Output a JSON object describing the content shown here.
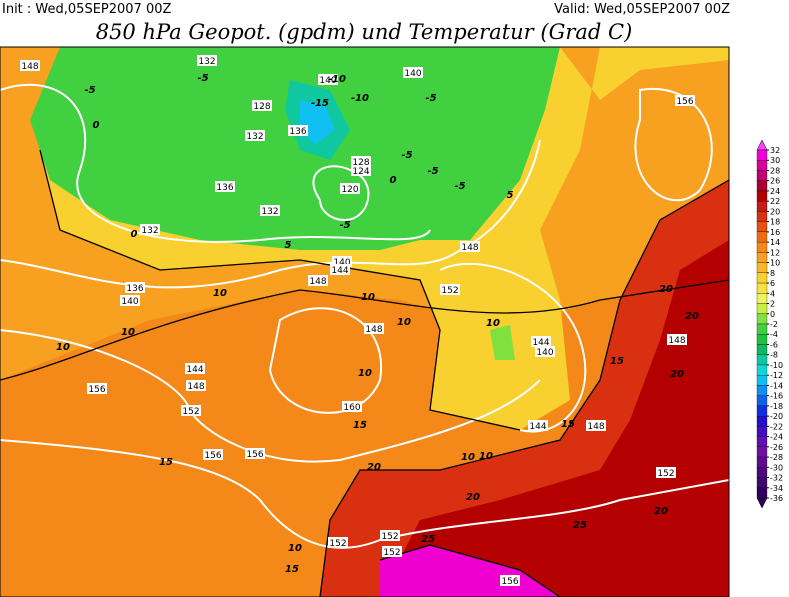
{
  "header": {
    "init": "Init : Wed,05SEP2007 00Z",
    "valid": "Valid: Wed,05SEP2007 00Z",
    "title": "850 hPa Geopot. (gpdm) und Temperatur (Grad C)"
  },
  "colorbar": {
    "labels": [
      32,
      30,
      28,
      26,
      24,
      22,
      20,
      18,
      16,
      14,
      12,
      10,
      8,
      6,
      4,
      2,
      0,
      -2,
      -4,
      -6,
      -8,
      -10,
      -12,
      -14,
      -16,
      -18,
      -20,
      -22,
      -24,
      -26,
      -28,
      -30,
      -32,
      -34,
      -36
    ],
    "colors": [
      "#ff40ff",
      "#f000d0",
      "#d8009c",
      "#c00070",
      "#a80030",
      "#b40000",
      "#c81818",
      "#d83010",
      "#e85010",
      "#f06c10",
      "#f48818",
      "#f8a020",
      "#f8b828",
      "#f8d030",
      "#f8e040",
      "#f0f060",
      "#c8f040",
      "#80e040",
      "#40d040",
      "#20c040",
      "#10b860",
      "#10c8a0",
      "#10d8d0",
      "#10c0f0",
      "#1090f0",
      "#1060f0",
      "#1030e0",
      "#2010d0",
      "#4010c0",
      "#6010b0",
      "#7010a0",
      "#600890",
      "#500880",
      "#400870",
      "#300060"
    ]
  },
  "geopotential_labels": [
    "148",
    "132",
    "128",
    "132",
    "136",
    "140",
    "132",
    "136",
    "120",
    "128",
    "124",
    "140",
    "132",
    "144",
    "148",
    "136",
    "140",
    "140",
    "156",
    "148",
    "152",
    "144",
    "148",
    "156",
    "152",
    "160",
    "156",
    "156",
    "144",
    "140",
    "144",
    "148",
    "148",
    "152",
    "152",
    "152",
    "152",
    "156",
    "148"
  ],
  "temperature_labels": [
    "-5",
    "0",
    "-5",
    "-15",
    "-10",
    "-10",
    "-5",
    "-5",
    "-5",
    "0",
    "-5",
    "0",
    "5",
    "10",
    "10",
    "10",
    "10",
    "10",
    "10",
    "15",
    "15",
    "20",
    "20",
    "20",
    "25",
    "25",
    "20",
    "15",
    "10",
    "15",
    "10",
    "-5",
    "5",
    "15",
    "20",
    "20",
    "10",
    "10"
  ]
}
